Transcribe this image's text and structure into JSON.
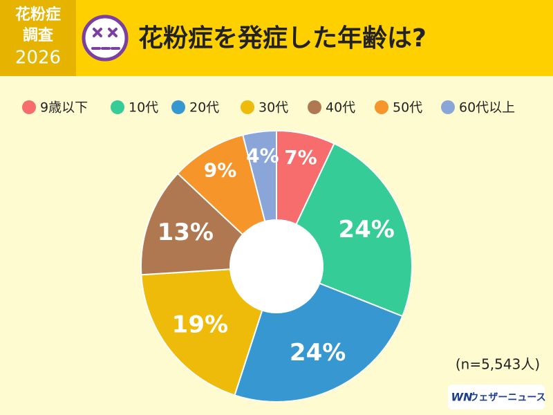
{
  "header": {
    "badge": [
      "花粉症",
      "調査",
      "2026"
    ],
    "title": "花粉症を発症した年齢は?"
  },
  "chart_data": {
    "type": "donut",
    "categories": [
      "9歳以下",
      "10代",
      "20代",
      "30代",
      "40代",
      "50代",
      "60代以上"
    ],
    "values": [
      7,
      24,
      24,
      19,
      13,
      9,
      4
    ],
    "value_labels": [
      "7%",
      "24%",
      "24%",
      "19%",
      "13%",
      "9%",
      "4%"
    ],
    "colors": [
      "#f76d6d",
      "#36cc98",
      "#3797d0",
      "#eebb0a",
      "#b07850",
      "#f5952a",
      "#8aa6d8"
    ],
    "legend": "top"
  },
  "note": "(n=5,543人)",
  "logo": {
    "mark": "WN",
    "text": "ウェザーニュース"
  }
}
